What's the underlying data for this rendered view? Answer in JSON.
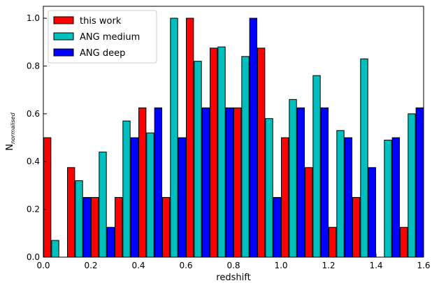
{
  "chart_data": {
    "type": "bar",
    "xlabel": "redshift",
    "ylabel": "N",
    "ylabel_subscript": "normalised",
    "xlim": [
      0.0,
      1.6
    ],
    "ylim": [
      0.0,
      1.05
    ],
    "x_ticks": [
      "0.0",
      "0.2",
      "0.4",
      "0.6",
      "0.8",
      "1.0",
      "1.2",
      "1.4",
      "1.6"
    ],
    "y_ticks": [
      "0.0",
      "0.2",
      "0.4",
      "0.6",
      "0.8",
      "1.0"
    ],
    "bin_centers": [
      0.05,
      0.15,
      0.25,
      0.35,
      0.45,
      0.55,
      0.65,
      0.75,
      0.85,
      0.95,
      1.05,
      1.15,
      1.25,
      1.35,
      1.45,
      1.55
    ],
    "bar_width": 0.0333,
    "grid": false,
    "legend_placement": "top-left",
    "series": [
      {
        "name": "this work",
        "color": "#ff0000",
        "offset": -0.0333,
        "values": [
          0.5,
          0.375,
          0.25,
          0.25,
          0.625,
          0.25,
          1.0,
          0.875,
          0.625,
          0.875,
          0.5,
          0.375,
          0.125,
          0.25,
          0.0,
          0.125
        ]
      },
      {
        "name": "ANG medium",
        "color": "#00bfbf",
        "offset": 0.0,
        "values": [
          0.07,
          0.32,
          0.44,
          0.57,
          0.52,
          1.0,
          0.82,
          0.88,
          0.84,
          0.58,
          0.66,
          0.76,
          0.53,
          0.83,
          0.49,
          0.6
        ]
      },
      {
        "name": "ANG deep",
        "color": "#0000ff",
        "offset": 0.0333,
        "values": [
          0.0,
          0.25,
          0.125,
          0.5,
          0.625,
          0.5,
          0.625,
          0.625,
          1.0,
          0.25,
          0.625,
          0.625,
          0.5,
          0.375,
          0.5,
          0.625
        ]
      }
    ]
  }
}
